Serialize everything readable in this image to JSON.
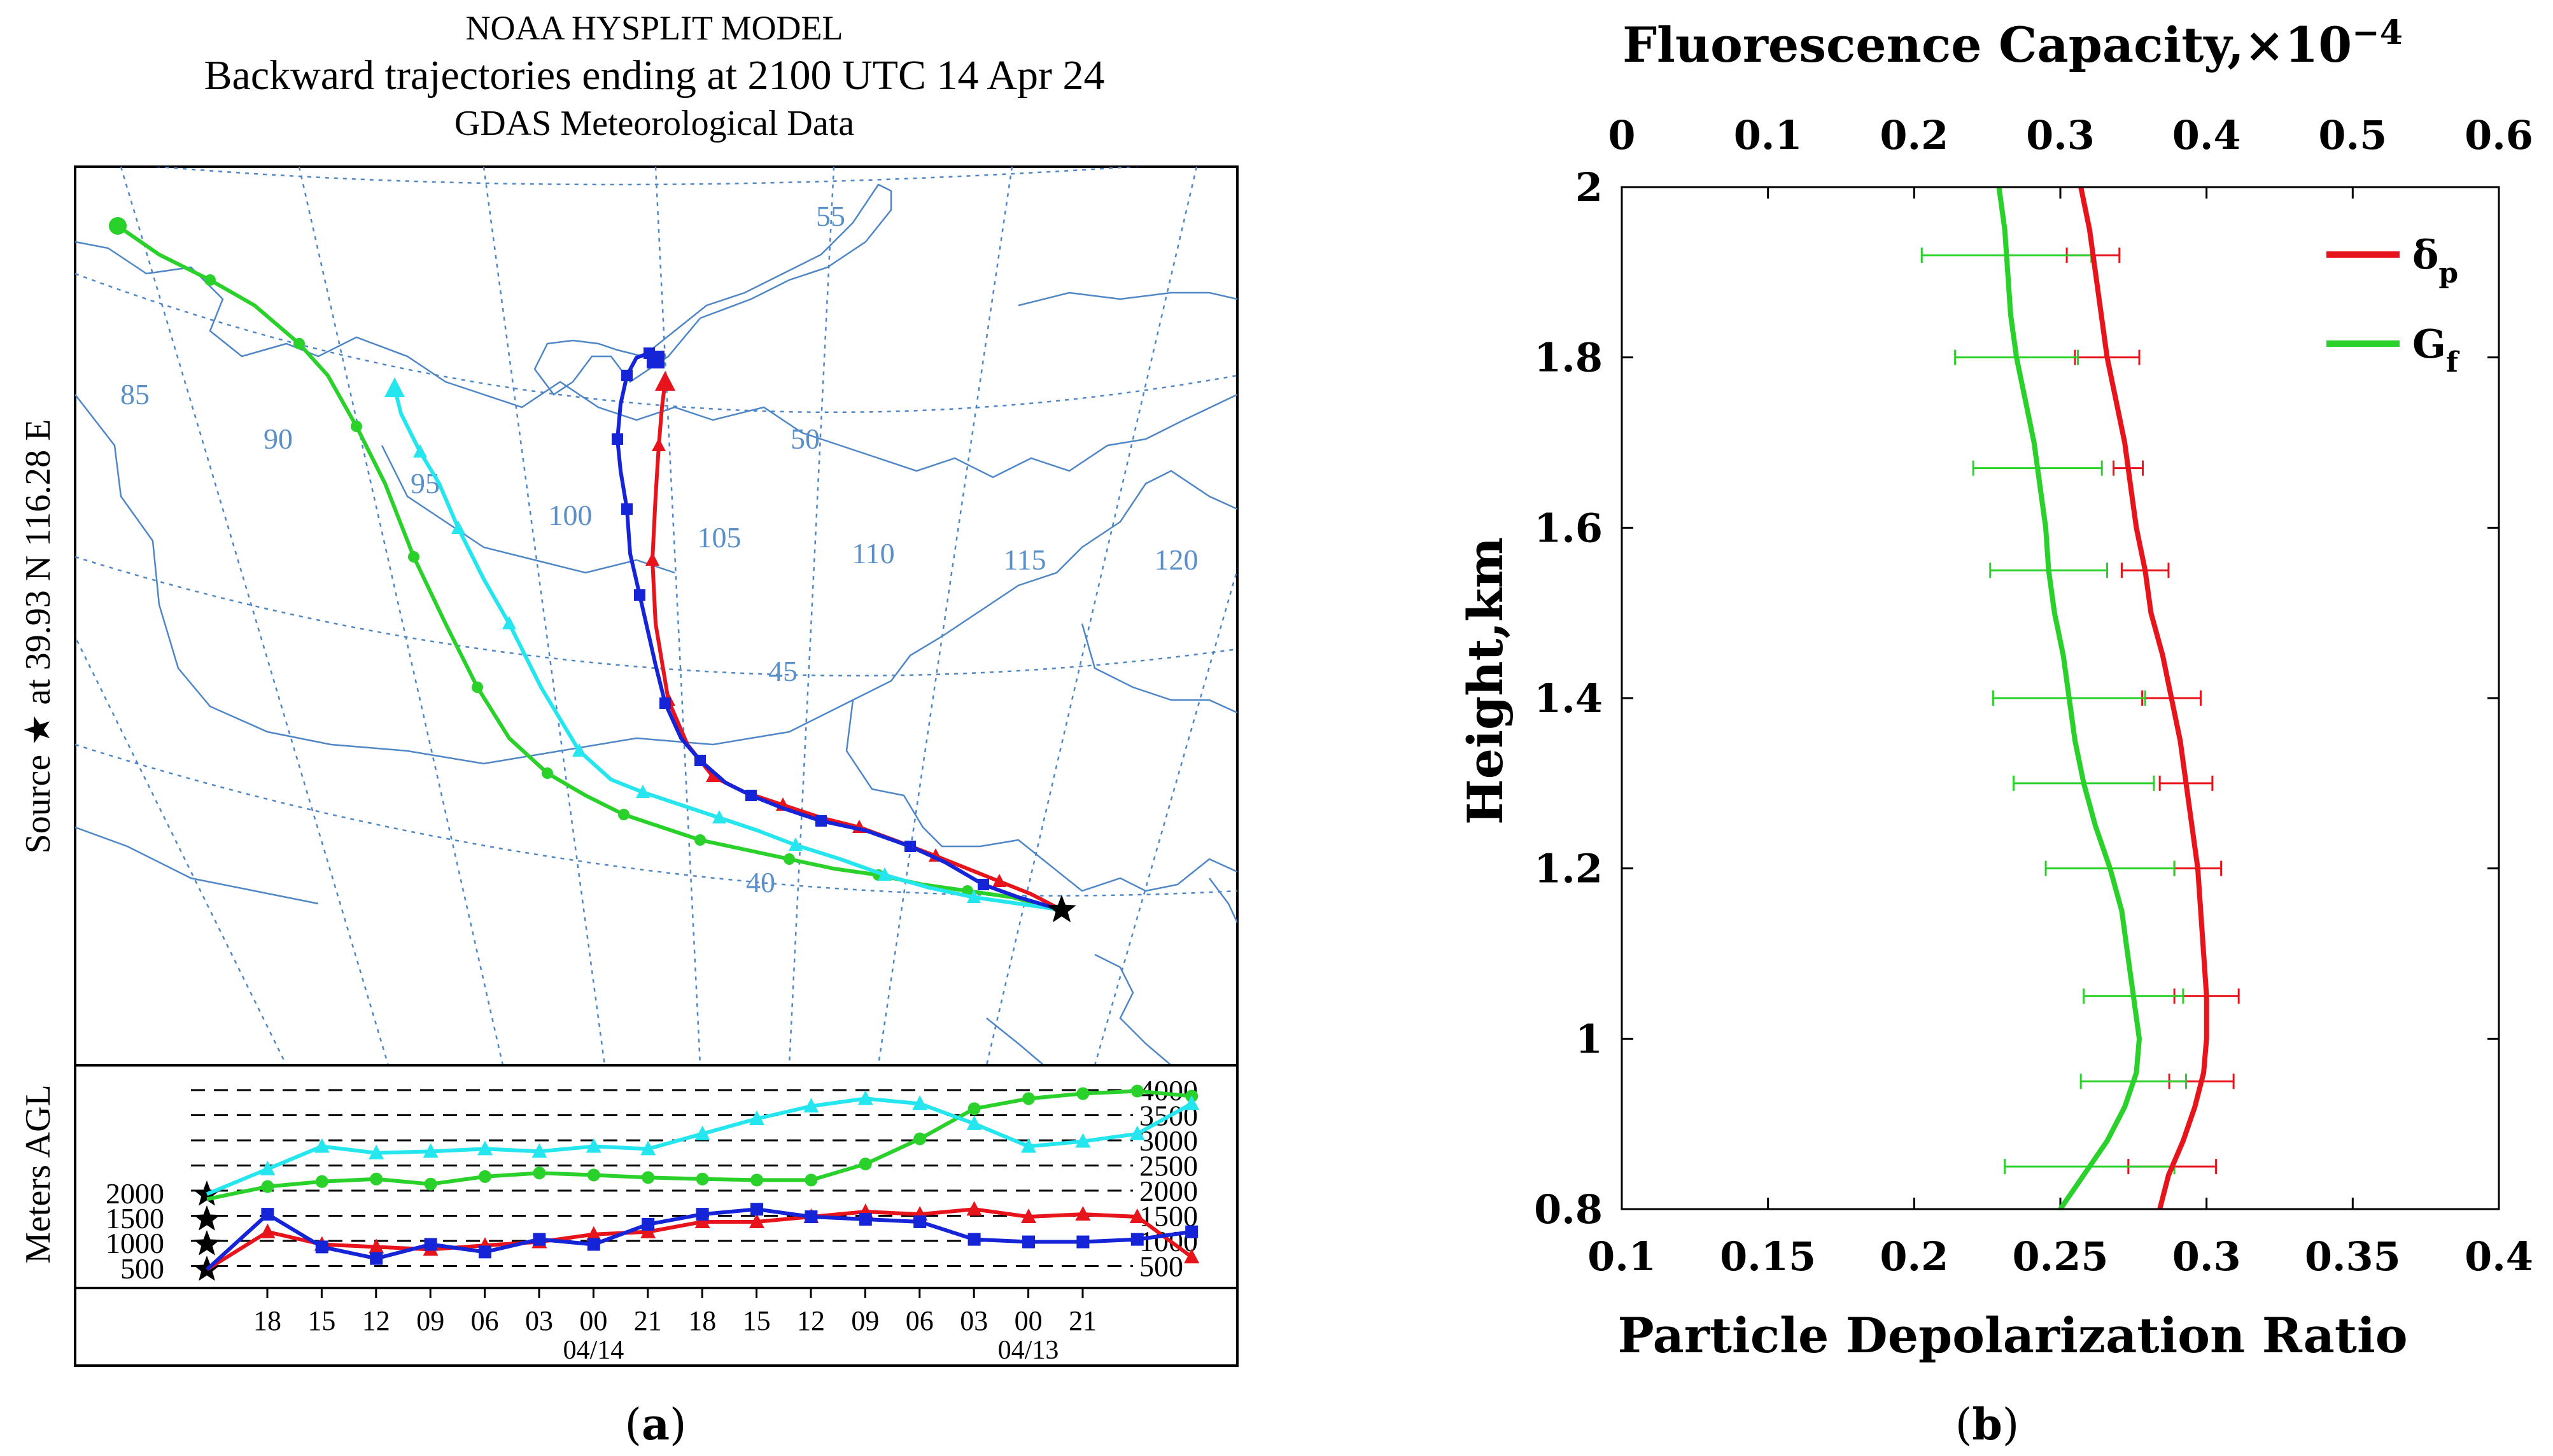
{
  "colors": {
    "background": "#ffffff",
    "red": "#e8141b",
    "blue": "#1424d6",
    "cyan": "#25e6ee",
    "green": "#2bd12b",
    "map_line": "#4f86c6",
    "grid_label": "#5a8fc8",
    "axis": "#000000",
    "grid": "#d8d8d8"
  },
  "panel_a": {
    "caption_open": "(",
    "caption_letter": "a",
    "caption_close": ")",
    "title_line1": "NOAA HYSPLIT MODEL",
    "title_line2": "Backward trajectories ending at 2100 UTC 14 Apr 24",
    "title_line3": "GDAS Meteorological Data",
    "source_label": "Source ★ at   39.93 N  116.28 E",
    "meters_label": "Meters AGL",
    "longitude_labels": [
      "85",
      "90",
      "95",
      "100",
      "105",
      "110",
      "115",
      "120"
    ],
    "latitude_labels": [
      "55",
      "50",
      "45",
      "40"
    ],
    "height_levels_right": [
      "4000",
      "3500",
      "3000",
      "2500",
      "2000",
      "1500",
      "1000",
      "500"
    ],
    "start_heights_left": [
      "2000",
      "1500",
      "1000",
      "500"
    ],
    "time_ticks": [
      "18",
      "15",
      "12",
      "09",
      "06",
      "03",
      "00",
      "21",
      "18",
      "15",
      "12",
      "09",
      "06",
      "03",
      "00",
      "21"
    ],
    "date_labels": [
      "04/14",
      "04/13"
    ]
  },
  "chart_data": {
    "type": "line",
    "caption_open": "(",
    "caption_letter": "b",
    "caption_close": ")",
    "xlabel_bottom": "Particle Depolarization Ratio",
    "xlabel_top": "Fluorescence Capacity,×10",
    "xlabel_top_exponent": "−4",
    "ylabel": "Height,km",
    "xlim_bottom": [
      0.1,
      0.4
    ],
    "xlim_top": [
      0,
      0.6
    ],
    "ylim": [
      0.8,
      2.0
    ],
    "x_ticks_bottom": [
      "0.1",
      "0.15",
      "0.2",
      "0.25",
      "0.3",
      "0.35",
      "0.4"
    ],
    "x_ticks_top": [
      "0",
      "0.1",
      "0.2",
      "0.3",
      "0.4",
      "0.5",
      "0.6"
    ],
    "y_ticks": [
      "0.8",
      "1",
      "1.2",
      "1.4",
      "1.6",
      "1.8",
      "2"
    ],
    "legend_position": "top-right",
    "series": [
      {
        "name": "δ",
        "subscript": "p",
        "color": "#e8141b",
        "axis": "bottom",
        "height": [
          0.8,
          0.84,
          0.88,
          0.92,
          0.96,
          1.0,
          1.05,
          1.1,
          1.15,
          1.2,
          1.25,
          1.3,
          1.35,
          1.4,
          1.45,
          1.5,
          1.55,
          1.6,
          1.65,
          1.7,
          1.75,
          1.8,
          1.85,
          1.9,
          1.95,
          2.0
        ],
        "values": [
          0.284,
          0.287,
          0.292,
          0.296,
          0.299,
          0.3,
          0.3,
          0.299,
          0.298,
          0.297,
          0.295,
          0.293,
          0.291,
          0.288,
          0.285,
          0.281,
          0.279,
          0.276,
          0.274,
          0.272,
          0.269,
          0.266,
          0.264,
          0.262,
          0.26,
          0.257
        ],
        "error_heights": [
          0.85,
          0.95,
          1.05,
          1.2,
          1.3,
          1.4,
          1.55,
          1.67,
          1.8,
          1.92
        ],
        "error_half_widths": [
          0.015,
          0.011,
          0.011,
          0.008,
          0.009,
          0.01,
          0.008,
          0.005,
          0.011,
          0.009
        ]
      },
      {
        "name": "G",
        "subscript": "f",
        "color": "#2bd12b",
        "axis": "bottom",
        "height": [
          0.8,
          0.84,
          0.88,
          0.92,
          0.96,
          1.0,
          1.05,
          1.1,
          1.15,
          1.2,
          1.25,
          1.3,
          1.35,
          1.4,
          1.45,
          1.5,
          1.55,
          1.6,
          1.65,
          1.7,
          1.75,
          1.8,
          1.85,
          1.9,
          1.95,
          2.0
        ],
        "values": [
          0.25,
          0.258,
          0.266,
          0.272,
          0.276,
          0.277,
          0.275,
          0.273,
          0.271,
          0.267,
          0.262,
          0.258,
          0.255,
          0.253,
          0.251,
          0.248,
          0.246,
          0.245,
          0.243,
          0.241,
          0.238,
          0.235,
          0.233,
          0.232,
          0.231,
          0.229
        ],
        "error_heights": [
          0.85,
          0.95,
          1.05,
          1.2,
          1.3,
          1.4,
          1.55,
          1.67,
          1.8,
          1.92
        ],
        "error_half_widths": [
          0.029,
          0.018,
          0.017,
          0.022,
          0.024,
          0.026,
          0.02,
          0.022,
          0.021,
          0.029
        ]
      }
    ]
  }
}
